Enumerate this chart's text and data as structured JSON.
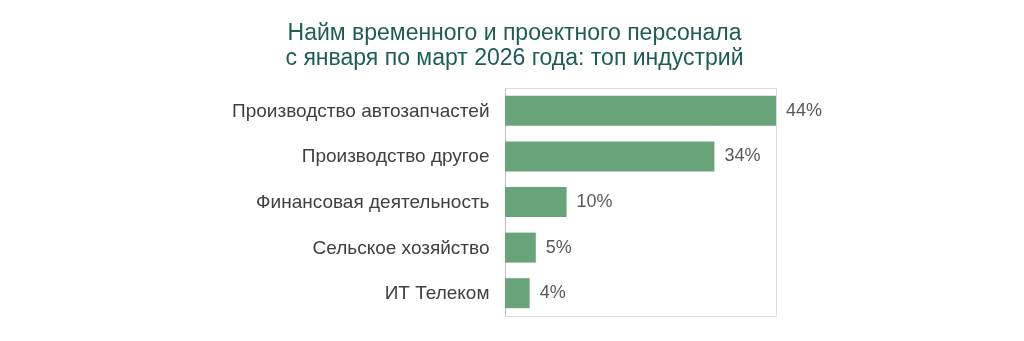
{
  "chart_data": {
    "type": "bar",
    "orientation": "horizontal",
    "title": [
      "Найм временного и проектного персонала",
      "с января по март 2026 года: топ индустрий"
    ],
    "categories": [
      "Производство автозапчастей",
      "Производство другое",
      "Финансовая деятельность",
      "Сельское хозяйство",
      "ИТ Телеком"
    ],
    "values": [
      44,
      34,
      10,
      5,
      4
    ],
    "color": "#68a477",
    "value_labels": [
      "44%",
      "34%",
      "10%",
      "5%",
      "4%"
    ]
  }
}
